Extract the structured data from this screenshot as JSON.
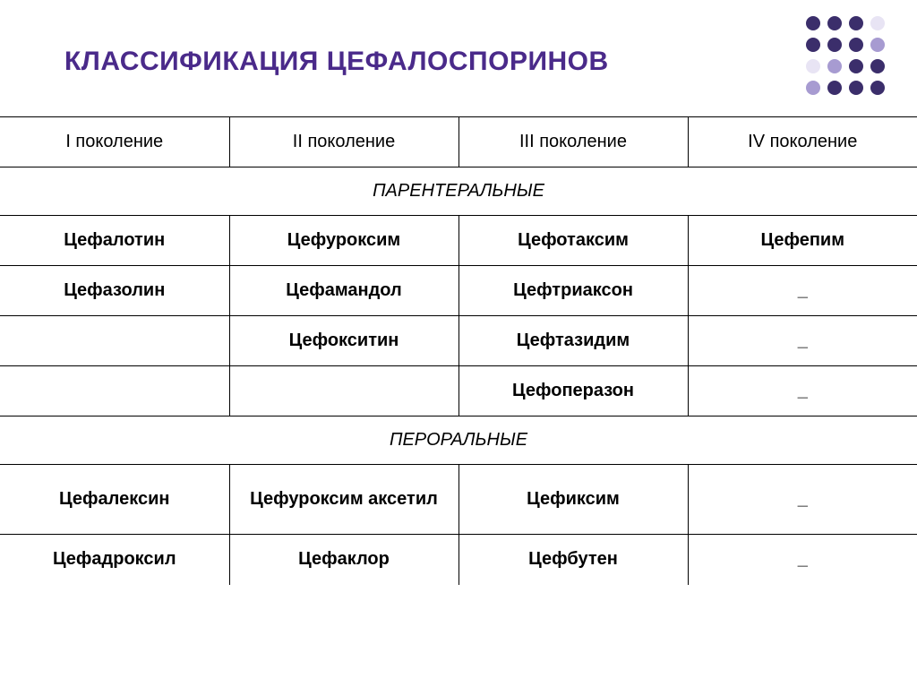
{
  "title": "КЛАССИФИКАЦИЯ ЦЕФАЛОСПОРИНОВ",
  "colors": {
    "title": "#4a2a8a",
    "background": "#ffffff",
    "border": "#000000"
  },
  "dots_grid": {
    "rows": 4,
    "cols": 4,
    "gap": 6,
    "size": 16,
    "colors": [
      [
        "#3b2e6b",
        "#3b2e6b",
        "#3b2e6b",
        "#e8e4f4"
      ],
      [
        "#3b2e6b",
        "#3b2e6b",
        "#3b2e6b",
        "#a79bd1"
      ],
      [
        "#e8e4f4",
        "#a79bd1",
        "#3b2e6b",
        "#3b2e6b"
      ],
      [
        "#a79bd1",
        "#3b2e6b",
        "#3b2e6b",
        "#3b2e6b"
      ]
    ]
  },
  "table": {
    "headers": [
      "I поколение",
      "II поколение",
      "III поколение",
      "IV поколение"
    ],
    "sections": [
      {
        "label": "ПАРЕНТЕРАЛЬНЫЕ",
        "rows": [
          [
            "Цефалотин",
            "Цефуроксим",
            "Цефотаксим",
            "Цефепим"
          ],
          [
            "Цефазолин",
            "Цефамандол",
            "Цефтриаксон",
            "_"
          ],
          [
            "",
            "Цефокситин",
            "Цефтазидим",
            "_"
          ],
          [
            "",
            "",
            "Цефоперазон",
            "_"
          ]
        ]
      },
      {
        "label": "ПЕРОРАЛЬНЫЕ",
        "rows": [
          [
            "Цефалексин",
            "Цефуроксим аксетил",
            "Цефиксим",
            "_"
          ],
          [
            "Цефадроксил",
            "Цефаклор",
            "Цефбутен",
            "_"
          ]
        ]
      }
    ]
  },
  "fontsize": {
    "title": 30,
    "header": 20,
    "cell": 20
  }
}
